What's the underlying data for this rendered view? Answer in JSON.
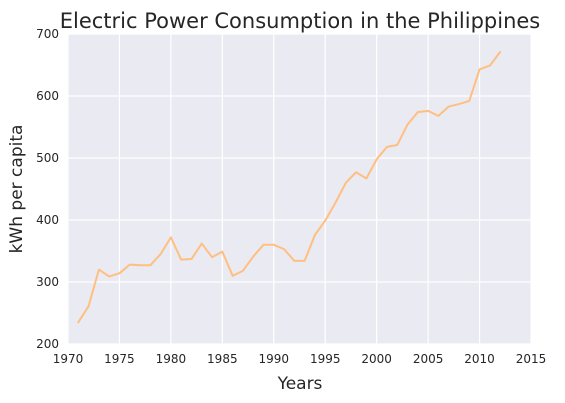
{
  "chart_data": {
    "type": "line",
    "title": "Electric Power Consumption in the Philippines",
    "xlabel": "Years",
    "ylabel": "kWh per capita",
    "xlim": [
      1970,
      2015
    ],
    "ylim": [
      200,
      700
    ],
    "xticks": [
      1970,
      1975,
      1980,
      1985,
      1990,
      1995,
      2000,
      2005,
      2010,
      2015
    ],
    "yticks": [
      200,
      300,
      400,
      500,
      600,
      700
    ],
    "grid": true,
    "legend": "none",
    "background_color": "#eaeaf2",
    "grid_color": "#ffffff",
    "series": [
      {
        "color": "#ffbf80",
        "x": [
          1971,
          1972,
          1973,
          1974,
          1975,
          1976,
          1977,
          1978,
          1979,
          1980,
          1981,
          1982,
          1983,
          1984,
          1985,
          1986,
          1987,
          1988,
          1989,
          1990,
          1991,
          1992,
          1993,
          1994,
          1995,
          1996,
          1997,
          1998,
          1999,
          2000,
          2001,
          2002,
          2003,
          2004,
          2005,
          2006,
          2007,
          2008,
          2009,
          2010,
          2011,
          2012
        ],
        "values": [
          235,
          261,
          320,
          309,
          314,
          328,
          327,
          327,
          345,
          372,
          336,
          337,
          362,
          340,
          349,
          310,
          318,
          341,
          360,
          360,
          353,
          334,
          334,
          376,
          399,
          428,
          460,
          477,
          467,
          498,
          518,
          521,
          554,
          574,
          576,
          568,
          583,
          587,
          592,
          643,
          649,
          671
        ]
      }
    ]
  }
}
